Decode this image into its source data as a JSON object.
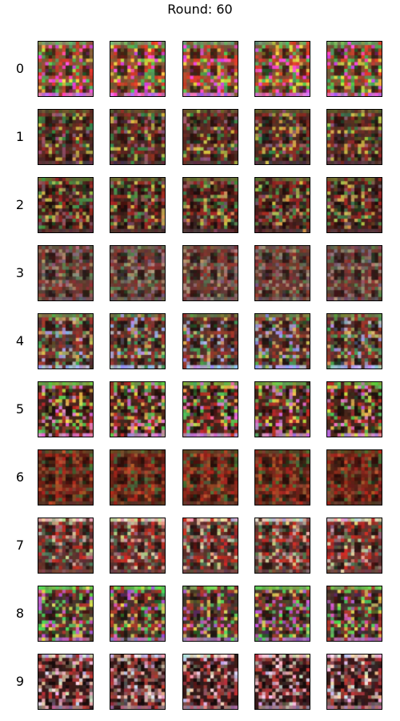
{
  "title": "Round: 60",
  "rows": [
    {
      "label": "0",
      "colors": [
        "#8c5a38",
        "#d4462e",
        "#58b85a",
        "#ff4fd6",
        "#e8d447"
      ],
      "top_band": "#7fa86b",
      "bottom_band": "#e07be0"
    },
    {
      "label": "1",
      "colors": [
        "#5a2e26",
        "#8a2f26",
        "#c8b64a",
        "#3f7f4a",
        "#9c5a72"
      ],
      "top_band": "#6b5a30",
      "bottom_band": "#5a3a44"
    },
    {
      "label": "2",
      "colors": [
        "#4a231e",
        "#9a2a24",
        "#c8b254",
        "#4f8a4a",
        "#8a5560"
      ],
      "top_band": "#6f6a34",
      "bottom_band": "#5a3838"
    },
    {
      "label": "3",
      "colors": [
        "#6e3f36",
        "#8e3a34",
        "#a88e76",
        "#667a56",
        "#8a6a74"
      ],
      "top_band": "#7a5e52",
      "bottom_band": "#7a5e62"
    },
    {
      "label": "4",
      "colors": [
        "#5e3530",
        "#9a3a30",
        "#c9b166",
        "#4f9a5a",
        "#a9a4d8"
      ],
      "top_band": "#7a8a4a",
      "bottom_band": "#b6b8e8"
    },
    {
      "label": "5",
      "colors": [
        "#4a281e",
        "#b2322a",
        "#e4c94c",
        "#5fb85a",
        "#e07cc6"
      ],
      "top_band": "#7ab84a",
      "bottom_band": "#d48ac8"
    },
    {
      "label": "6",
      "colors": [
        "#6a2418",
        "#a42a1e",
        "#8a4a2e",
        "#b4542c",
        "#4e6a3a"
      ],
      "top_band": "#6a4a2a",
      "bottom_band": "#6a3a2a"
    },
    {
      "label": "7",
      "colors": [
        "#6a3530",
        "#c03228",
        "#d8c29a",
        "#5c7a5a",
        "#a86e74"
      ],
      "top_band": "#e8d4c4",
      "bottom_band": "#7a4a48"
    },
    {
      "label": "8",
      "colors": [
        "#4e3a30",
        "#a83a2e",
        "#d8c85a",
        "#5ac85e",
        "#c860c8"
      ],
      "top_band": "#7ad05a",
      "bottom_band": "#b478b4"
    },
    {
      "label": "9",
      "colors": [
        "#3a1c1c",
        "#b23a3a",
        "#d8b0a6",
        "#8a5a5a",
        "#f0d0e0"
      ],
      "top_band": "#f0d4dc",
      "bottom_band": "#b07890"
    }
  ]
}
